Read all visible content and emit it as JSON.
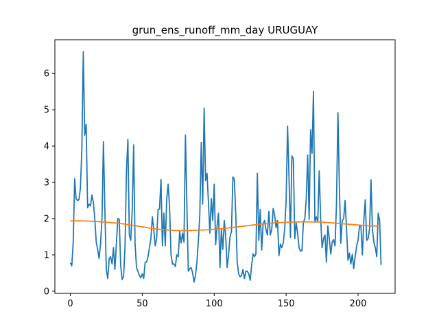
{
  "chart_data": {
    "type": "line",
    "title": "grun_ens_runoff_mm_day URUGUAY",
    "xlabel": "",
    "ylabel": "",
    "xlim": [
      -10.75,
      225.75
    ],
    "ylim": [
      -0.06,
      6.93
    ],
    "xticks": [
      0,
      50,
      100,
      150,
      200
    ],
    "yticks": [
      0,
      1,
      2,
      3,
      4,
      5,
      6
    ],
    "grid": false,
    "colors": {
      "series_1": "#1f77b4",
      "series_2": "#ff7f0e"
    },
    "series": [
      {
        "values": [
          0.78,
          0.7,
          1.35,
          3.1,
          2.55,
          2.5,
          2.52,
          2.85,
          3.9,
          6.6,
          4.3,
          4.6,
          2.3,
          2.4,
          2.35,
          2.65,
          2.45,
          2.0,
          1.35,
          1.15,
          0.9,
          1.3,
          2.0,
          4.12,
          2.25,
          0.6,
          0.35,
          0.9,
          0.95,
          0.75,
          1.2,
          0.6,
          1.3,
          2.0,
          1.98,
          0.7,
          0.32,
          0.4,
          1.2,
          3.3,
          4.18,
          1.55,
          1.4,
          2.2,
          4.03,
          1.3,
          0.65,
          0.55,
          0.43,
          0.37,
          0.48,
          0.35,
          0.8,
          0.8,
          0.95,
          1.2,
          1.45,
          2.05,
          1.7,
          1.25,
          1.45,
          2.25,
          2.27,
          3.08,
          1.25,
          2.15,
          1.25,
          2.55,
          2.95,
          2.3,
          1.0,
          0.75,
          0.75,
          0.68,
          1.0,
          0.95,
          1.65,
          1.33,
          1.6,
          1.35,
          4.3,
          2.4,
          0.55,
          0.62,
          0.65,
          0.5,
          0.25,
          0.45,
          0.8,
          1.4,
          2.1,
          4.1,
          2.4,
          5.05,
          3.05,
          3.25,
          2.45,
          1.6,
          2.55,
          1.95,
          2.95,
          1.28,
          1.8,
          2.15,
          0.65,
          1.7,
          1.15,
          1.95,
          1.5,
          0.65,
          1.0,
          1.5,
          1.65,
          3.15,
          3.08,
          2.1,
          0.8,
          0.48,
          0.4,
          0.43,
          0.6,
          0.35,
          0.55,
          0.55,
          0.48,
          0.3,
          0.7,
          1.03,
          0.95,
          1.03,
          3.25,
          1.4,
          2.25,
          1.13,
          1.85,
          1.95,
          1.7,
          1.55,
          2.2,
          1.55,
          1.7,
          2.28,
          2.1,
          1.75,
          1.95,
          0.98,
          1.3,
          1.2,
          1.33,
          1.72,
          2.5,
          4.55,
          3.15,
          1.48,
          3.73,
          3.65,
          1.45,
          1.88,
          1.6,
          1.2,
          1.1,
          1.12,
          1.9,
          2.0,
          2.55,
          3.75,
          1.98,
          4.45,
          3.8,
          5.5,
          1.9,
          2.05,
          1.92,
          3.32,
          2.0,
          1.2,
          1.45,
          1.55,
          0.8,
          1.8,
          1.45,
          1.02,
          1.35,
          1.42,
          1.25,
          2.4,
          4.92,
          2.9,
          1.32,
          1.95,
          2.0,
          2.5,
          1.72,
          0.85,
          1.05,
          0.75,
          1.02,
          0.62,
          0.95,
          1.25,
          1.4,
          1.8,
          1.8,
          1.0,
          1.95,
          2.52,
          1.4,
          1.45,
          1.72,
          3.07,
          1.7,
          1.35,
          1.2,
          0.95,
          2.15,
          1.95,
          0.72
        ]
      },
      {
        "values": [
          1.94,
          1.94,
          1.93,
          1.92,
          1.9,
          1.88,
          1.85,
          1.81,
          1.77,
          1.73,
          1.7,
          1.68,
          1.67,
          1.67,
          1.68,
          1.69,
          1.71,
          1.73,
          1.76,
          1.79,
          1.82,
          1.85,
          1.87,
          1.89,
          1.9,
          1.91,
          1.91,
          1.91,
          1.9,
          1.88,
          1.86,
          1.84,
          1.82,
          1.8,
          1.8
        ],
        "step": 6.3
      }
    ]
  }
}
